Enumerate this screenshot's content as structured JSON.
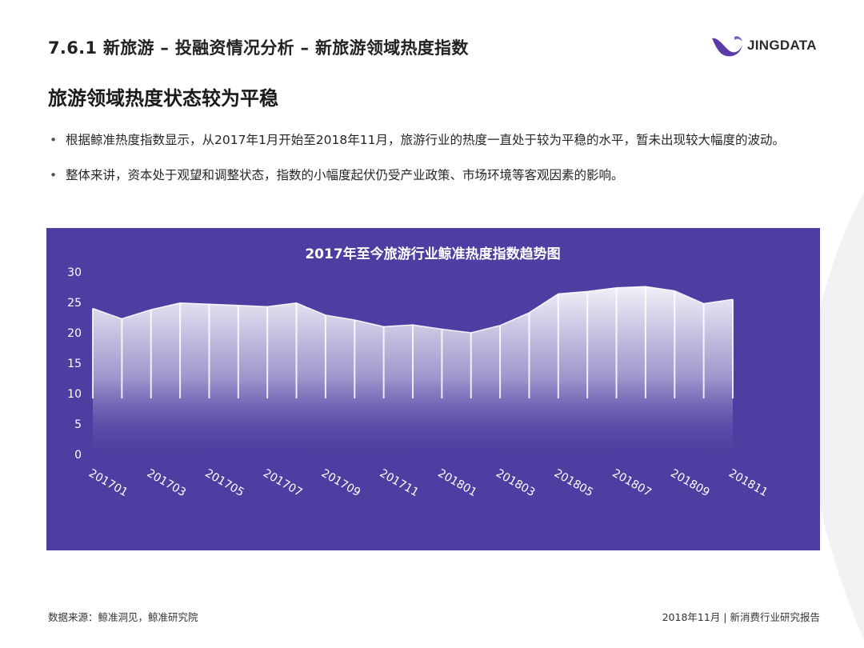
{
  "header": {
    "section_title": "7.6.1 新旅游 – 投融资情况分析 – 新旅游领域热度指数",
    "logo_text": "JINGDATA"
  },
  "heading": "旅游领域热度状态较为平稳",
  "bullets": [
    "根据鲸准热度指数显示，从2017年1月开始至2018年11月，旅游行业的热度一直处于较为平稳的水平，暂未出现较大幅度的波动。",
    "整体来讲，资本处于观望和调整状态，指数的小幅度起伏仍受产业政策、市场环境等客观因素的影响。"
  ],
  "colors": {
    "panel_bg": "#4d3fa1",
    "area_top": "#ffffff",
    "area_bottom": "#5a4cb0",
    "text_on_panel": "#ffffff"
  },
  "chart_data": {
    "type": "area",
    "title": "2017年至今旅游行业鲸准热度指数趋势图",
    "x": [
      "201701",
      "201702",
      "201703",
      "201704",
      "201705",
      "201706",
      "201707",
      "201708",
      "201709",
      "201710",
      "201711",
      "201712",
      "201801",
      "201802",
      "201803",
      "201804",
      "201805",
      "201806",
      "201807",
      "201808",
      "201809",
      "201810",
      "201811"
    ],
    "x_tick_labels": [
      "201701",
      "201703",
      "201705",
      "201707",
      "201709",
      "201711",
      "201801",
      "201803",
      "201805",
      "201807",
      "201809",
      "201811"
    ],
    "values": [
      24.0,
      22.3,
      23.8,
      24.9,
      24.7,
      24.5,
      24.3,
      24.9,
      22.9,
      22.1,
      21.0,
      21.3,
      20.6,
      20.0,
      21.2,
      23.3,
      26.4,
      26.8,
      27.4,
      27.6,
      26.9,
      24.8,
      25.5
    ],
    "ylim": [
      0,
      30
    ],
    "y_ticks": [
      "0",
      "5",
      "10",
      "15",
      "20",
      "25",
      "30"
    ],
    "grid": false,
    "xlabel": "",
    "ylabel": ""
  },
  "footer": {
    "source": "数据来源：鲸准洞见，鲸准研究院",
    "report": "2018年11月 | 新消费行业研究报告"
  }
}
